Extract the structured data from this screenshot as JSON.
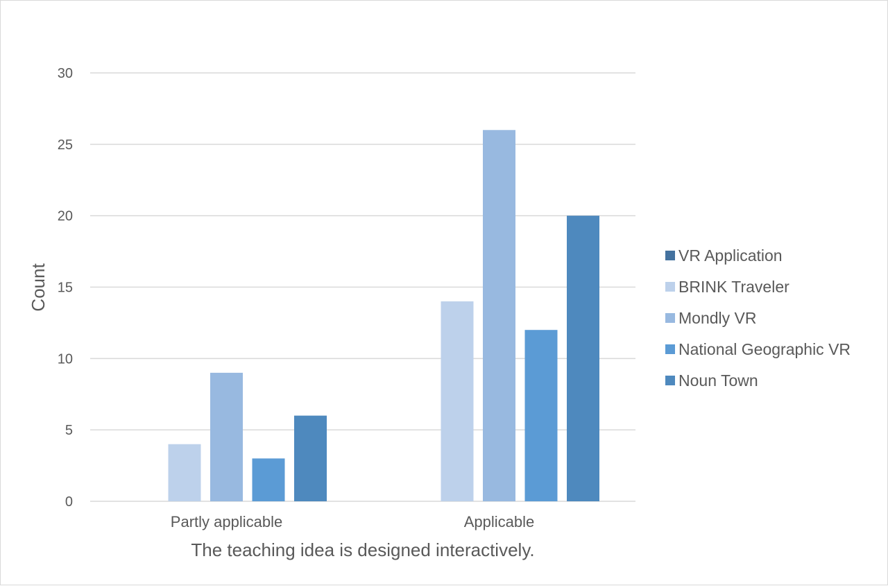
{
  "chart_data": {
    "type": "bar",
    "title": "",
    "xlabel": "The teaching idea is designed interactively.",
    "ylabel": "Count",
    "ylim": [
      0,
      30
    ],
    "yticks": [
      0,
      5,
      10,
      15,
      20,
      25,
      30
    ],
    "grid": true,
    "legend_position": "right",
    "categories": [
      "Partly applicable",
      "Applicable"
    ],
    "series": [
      {
        "name": "VR Application",
        "values": [
          null,
          null
        ],
        "color": "#44729f"
      },
      {
        "name": "BRINK Traveler",
        "values": [
          4,
          14
        ],
        "color": "#bdd1eb"
      },
      {
        "name": "Mondly VR",
        "values": [
          9,
          26
        ],
        "color": "#98b9e0"
      },
      {
        "name": "National Geographic VR",
        "values": [
          3,
          12
        ],
        "color": "#5b9bd5"
      },
      {
        "name": "Noun Town",
        "values": [
          6,
          20
        ],
        "color": "#4e89be"
      }
    ]
  }
}
